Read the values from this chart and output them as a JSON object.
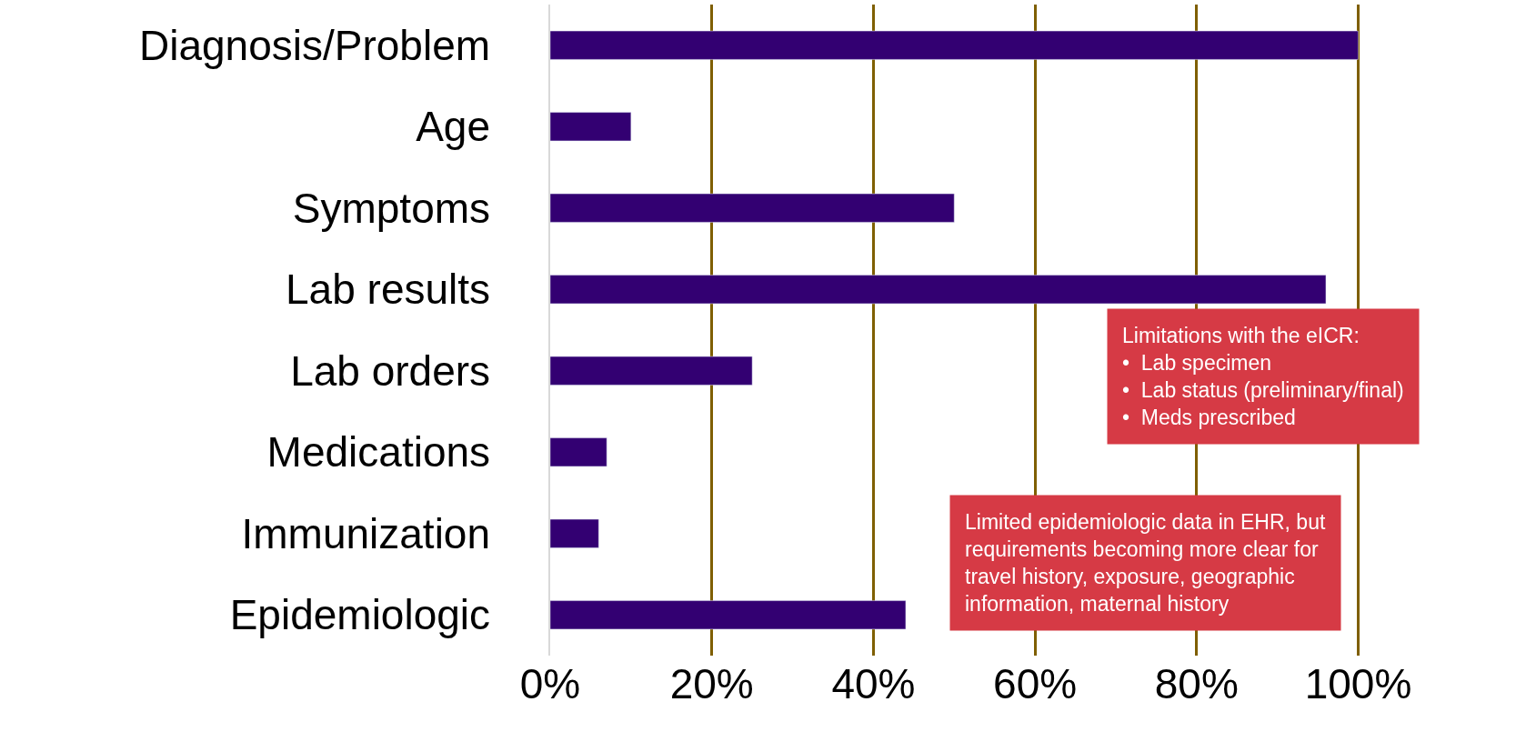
{
  "chart_data": {
    "type": "bar",
    "orientation": "horizontal",
    "categories": [
      "Diagnosis/Problem",
      "Age",
      "Symptoms",
      "Lab results",
      "Lab orders",
      "Medications",
      "Immunization",
      "Epidemiologic"
    ],
    "values": [
      100,
      10,
      50,
      96,
      25,
      7,
      6,
      44
    ],
    "color": "#330072",
    "xlim": [
      0,
      122
    ],
    "xticks": [
      {
        "value": 0,
        "label": "0%"
      },
      {
        "value": 20,
        "label": "20%"
      },
      {
        "value": 40,
        "label": "40%"
      },
      {
        "value": 60,
        "label": "60%"
      },
      {
        "value": 80,
        "label": "80%"
      },
      {
        "value": 100,
        "label": "100%"
      }
    ],
    "grid": "x",
    "annotations": [
      "Limitations with the eICR:\n•  Lab specimen\n•  Lab status (preliminary/final)\n•  Meds prescribed",
      "Limited epidemiologic data in EHR, but\nrequirements becoming more clear for\ntravel history, exposure, geographic\ninformation, maternal history"
    ]
  }
}
